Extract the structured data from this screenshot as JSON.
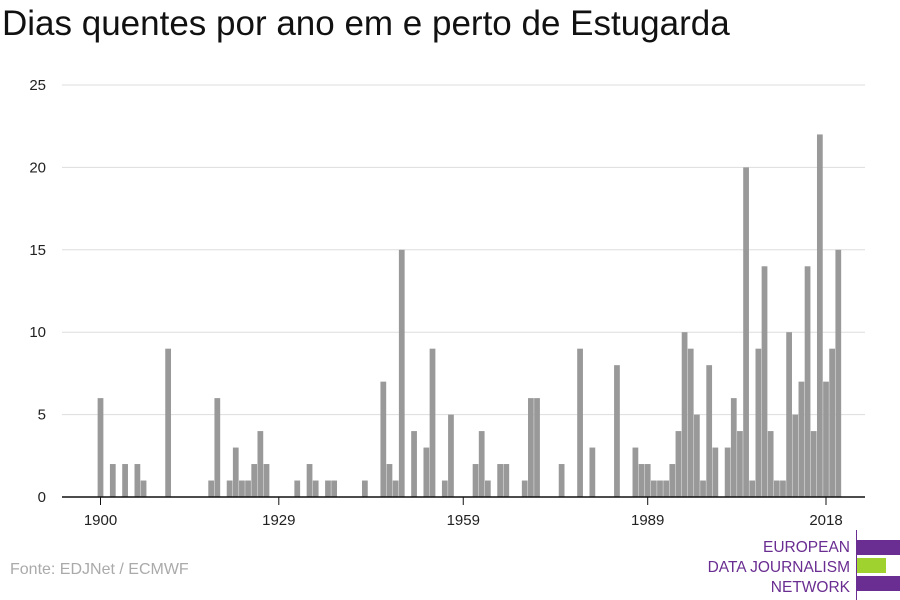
{
  "chart_data": {
    "type": "bar",
    "title": "Dias quentes por ano em e perto de Estugarda",
    "xlabel": "",
    "ylabel": "",
    "ylim": [
      0,
      25
    ],
    "yticks": [
      0,
      5,
      10,
      15,
      20,
      25
    ],
    "xticks": [
      1900,
      1929,
      1959,
      1989,
      2018
    ],
    "xlim": [
      1895,
      2024
    ],
    "grid": true,
    "bar_color": "#999999",
    "x": [
      1900,
      1902,
      1904,
      1906,
      1907,
      1911,
      1918,
      1919,
      1921,
      1922,
      1923,
      1924,
      1925,
      1926,
      1927,
      1932,
      1934,
      1935,
      1937,
      1938,
      1943,
      1946,
      1947,
      1948,
      1949,
      1951,
      1953,
      1954,
      1956,
      1957,
      1961,
      1962,
      1963,
      1965,
      1966,
      1969,
      1970,
      1971,
      1975,
      1978,
      1980,
      1984,
      1987,
      1988,
      1989,
      1990,
      1991,
      1992,
      1993,
      1994,
      1995,
      1996,
      1997,
      1998,
      1999,
      2000,
      2002,
      2003,
      2004,
      2005,
      2006,
      2007,
      2008,
      2009,
      2010,
      2011,
      2012,
      2013,
      2014,
      2015,
      2016,
      2017,
      2018,
      2019,
      2020,
      2021,
      2022
    ],
    "values": [
      6,
      2,
      2,
      2,
      1,
      9,
      1,
      6,
      1,
      3,
      1,
      1,
      2,
      4,
      2,
      1,
      2,
      1,
      1,
      1,
      1,
      7,
      2,
      1,
      15,
      4,
      3,
      9,
      1,
      5,
      2,
      4,
      1,
      2,
      2,
      1,
      6,
      6,
      2,
      9,
      3,
      8,
      3,
      2,
      2,
      1,
      1,
      1,
      2,
      4,
      10,
      9,
      5,
      1,
      8,
      3,
      3,
      6,
      4,
      20,
      1,
      9,
      14,
      4,
      1,
      1,
      10,
      5,
      7,
      14,
      4,
      22,
      7,
      9,
      15,
      0,
      0
    ]
  },
  "source": "Fonte: EDJNet / ECMWF",
  "logo": {
    "line1": "EUROPEAN",
    "line2": "DATA JOURNALISM",
    "line3": "NETWORK",
    "purple": "#6a2d91",
    "green": "#9fd12f"
  }
}
